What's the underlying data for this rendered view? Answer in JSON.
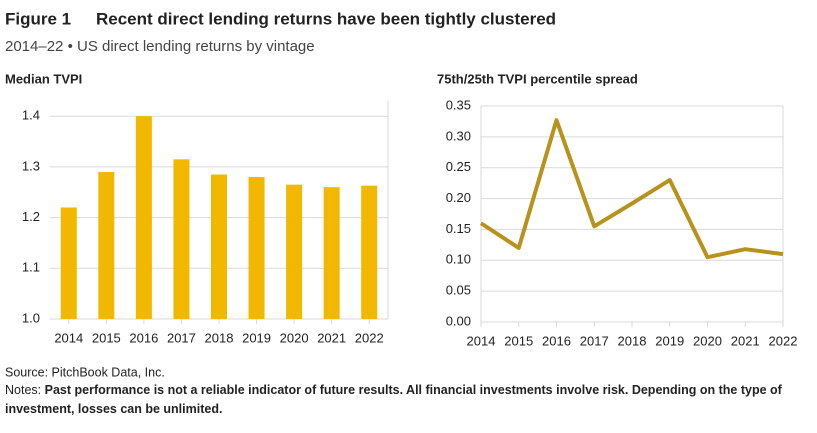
{
  "figure_label": "Figure 1",
  "title": "Recent direct lending returns have been tightly clustered",
  "subtitle": "2014–22 • US direct lending returns by vintage",
  "source": "Source: PitchBook Data, Inc.",
  "notes_label": "Notes:",
  "notes": "Past performance is not a reliable indicator of future results. All financial investments involve risk. Depending on the type of investment, losses can be unlimited.",
  "chart_data": [
    {
      "type": "bar",
      "title": "Median TVPI",
      "categories": [
        "2014",
        "2015",
        "2016",
        "2017",
        "2018",
        "2019",
        "2020",
        "2021",
        "2022"
      ],
      "values": [
        1.22,
        1.29,
        1.4,
        1.315,
        1.285,
        1.28,
        1.265,
        1.26,
        1.263
      ],
      "color": "#f2b700",
      "ylim": [
        1.0,
        1.43
      ],
      "yticks": [
        {
          "value": 1.0,
          "label": "1.0"
        },
        1.1,
        1.2,
        1.3,
        1.4
      ],
      "grid": true
    },
    {
      "type": "line",
      "title": "75th/25th TVPI percentile spread",
      "categories": [
        "2014",
        "2015",
        "2016",
        "2017",
        "2018",
        "2019",
        "2020",
        "2021",
        "2022"
      ],
      "values": [
        0.16,
        0.12,
        0.327,
        0.155,
        0.192,
        0.23,
        0.105,
        0.118,
        0.11
      ],
      "color": "#b8921c",
      "ylim": [
        0,
        0.35
      ],
      "yticks": [
        {
          "value": 0,
          "label": "0.00"
        },
        {
          "value": 0.05,
          "label": "0.05"
        },
        {
          "value": 0.1,
          "label": "0.10"
        },
        {
          "value": 0.15,
          "label": "0.15"
        },
        {
          "value": 0.2,
          "label": "0.20"
        },
        {
          "value": 0.25,
          "label": "0.25"
        },
        {
          "value": 0.3,
          "label": "0.30"
        },
        {
          "value": 0.35,
          "label": "0.35"
        }
      ],
      "grid": true
    }
  ]
}
